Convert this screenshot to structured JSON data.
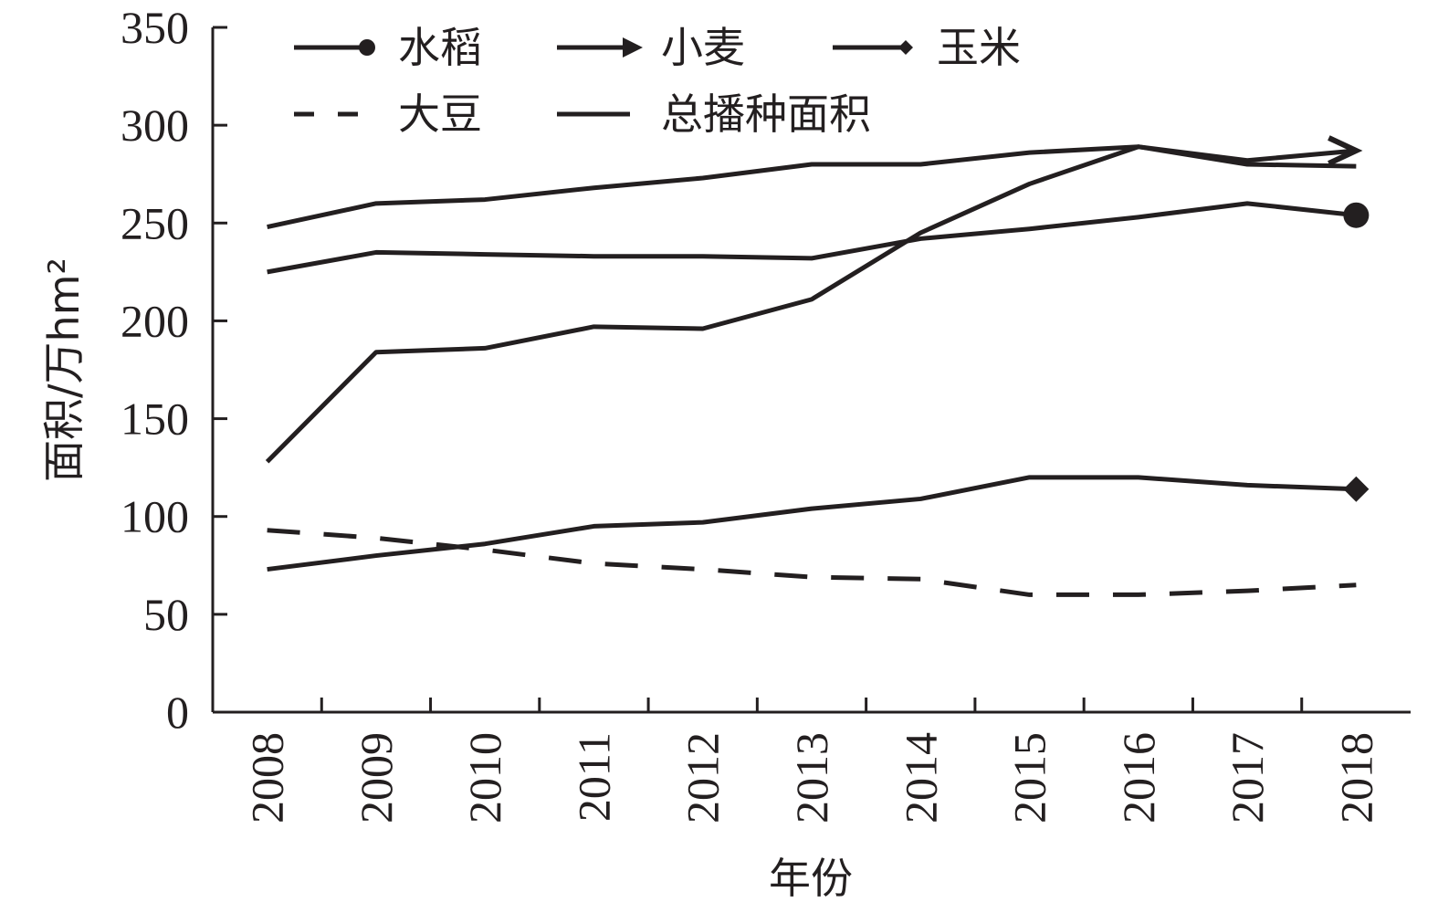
{
  "chart_data": {
    "type": "line",
    "xlabel": "年份",
    "ylabel": "面积/万hm²",
    "ylim": [
      0,
      350
    ],
    "yticks": [
      0,
      50,
      100,
      150,
      200,
      250,
      300,
      350
    ],
    "grid": false,
    "legend_position": "top",
    "categories": [
      "2008",
      "2009",
      "2010",
      "2011",
      "2012",
      "2013",
      "2014",
      "2015",
      "2016",
      "2017",
      "2018"
    ],
    "series": [
      {
        "name": "水稻",
        "marker": "circle",
        "style": "solid",
        "color": "#231f20",
        "values": [
          225,
          235,
          234,
          233,
          233,
          232,
          242,
          247,
          253,
          260,
          254
        ]
      },
      {
        "name": "小麦",
        "marker": "arrow",
        "style": "solid",
        "color": "#231f20",
        "values": [
          128,
          184,
          186,
          197,
          196,
          211,
          245,
          270,
          289,
          282,
          287
        ]
      },
      {
        "name": "玉米",
        "marker": "diamond",
        "style": "solid",
        "color": "#231f20",
        "values": [
          73,
          80,
          86,
          95,
          97,
          104,
          109,
          120,
          120,
          116,
          114
        ]
      },
      {
        "name": "大豆",
        "marker": "none",
        "style": "dashed",
        "color": "#231f20",
        "values": [
          93,
          89,
          83,
          76,
          73,
          69,
          68,
          60,
          60,
          62,
          65
        ]
      },
      {
        "name": "总播种面积",
        "marker": "none",
        "style": "solid",
        "color": "#231f20",
        "values": [
          248,
          260,
          262,
          268,
          273,
          280,
          280,
          286,
          289,
          280,
          279
        ]
      }
    ]
  }
}
